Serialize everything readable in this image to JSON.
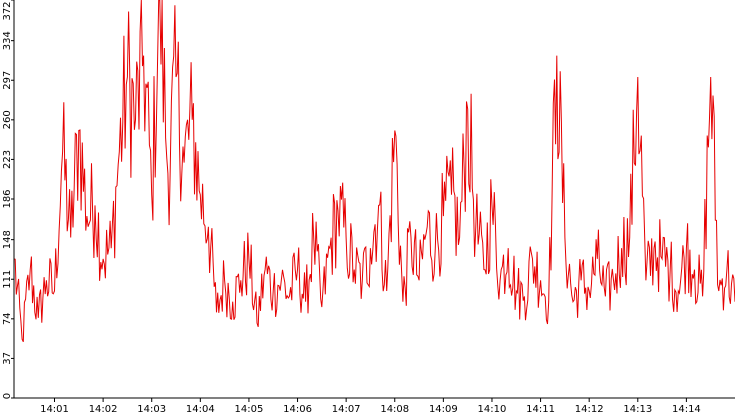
{
  "chart_data": {
    "type": "line",
    "title": "",
    "xlabel": "",
    "ylabel": "",
    "ylim": [
      0,
      372
    ],
    "xlim": [
      "14:00:10",
      "14:15:00"
    ],
    "y_ticks": [
      0,
      37,
      74,
      111,
      148,
      186,
      223,
      260,
      297,
      334,
      372
    ],
    "y_tick_labels": [
      "0",
      "37",
      "74",
      "111",
      "148",
      "186",
      "223",
      "260",
      "297",
      "334",
      "372"
    ],
    "x_ticks": [
      "14:01",
      "14:02",
      "14:03",
      "14:04",
      "14:05",
      "14:06",
      "14:07",
      "14:08",
      "14:09",
      "14:10",
      "14:11",
      "14:12",
      "14:13",
      "14:14"
    ],
    "grid": false,
    "series": [
      {
        "color": "#e60000",
        "x": [
          "14:00:10",
          "14:00:20",
          "14:00:30",
          "14:00:40",
          "14:00:50",
          "14:01:00",
          "14:01:10",
          "14:01:20",
          "14:01:30",
          "14:01:40",
          "14:01:50",
          "14:02:00",
          "14:02:10",
          "14:02:20",
          "14:02:30",
          "14:02:40",
          "14:02:50",
          "14:03:00",
          "14:03:10",
          "14:03:20",
          "14:03:30",
          "14:03:40",
          "14:03:50",
          "14:04:00",
          "14:04:10",
          "14:04:20",
          "14:04:30",
          "14:04:40",
          "14:04:50",
          "14:05:00",
          "14:05:10",
          "14:05:20",
          "14:05:30",
          "14:05:40",
          "14:05:50",
          "14:06:00",
          "14:06:10",
          "14:06:20",
          "14:06:30",
          "14:06:40",
          "14:06:50",
          "14:07:00",
          "14:07:10",
          "14:07:20",
          "14:07:30",
          "14:07:40",
          "14:07:50",
          "14:08:00",
          "14:08:10",
          "14:08:20",
          "14:08:30",
          "14:08:40",
          "14:08:50",
          "14:09:00",
          "14:09:10",
          "14:09:20",
          "14:09:30",
          "14:09:40",
          "14:09:50",
          "14:10:00",
          "14:10:10",
          "14:10:20",
          "14:10:30",
          "14:10:40",
          "14:10:50",
          "14:11:00",
          "14:11:10",
          "14:11:20",
          "14:11:30",
          "14:11:40",
          "14:11:50",
          "14:12:00",
          "14:12:10",
          "14:12:20",
          "14:12:30",
          "14:12:40",
          "14:12:50",
          "14:13:00",
          "14:13:10",
          "14:13:20",
          "14:13:30",
          "14:13:40",
          "14:13:50",
          "14:14:00",
          "14:14:10",
          "14:14:20",
          "14:14:30",
          "14:14:40",
          "14:14:50",
          "14:15:00"
        ],
        "values": [
          130,
          55,
          120,
          75,
          110,
          100,
          230,
          150,
          250,
          170,
          180,
          130,
          140,
          230,
          300,
          260,
          320,
          190,
          372,
          210,
          300,
          220,
          260,
          190,
          160,
          80,
          110,
          90,
          110,
          130,
          70,
          120,
          100,
          110,
          95,
          120,
          90,
          150,
          85,
          140,
          175,
          150,
          120,
          110,
          140,
          180,
          100,
          250,
          90,
          150,
          110,
          160,
          140,
          170,
          190,
          150,
          270,
          160,
          120,
          180,
          110,
          140,
          100,
          95,
          130,
          110,
          90,
          320,
          150,
          90,
          110,
          100,
          130,
          95,
          110,
          140,
          150,
          300,
          110,
          140,
          130,
          120,
          100,
          140,
          120,
          95,
          300,
          100,
          120,
          90
        ]
      }
    ]
  }
}
